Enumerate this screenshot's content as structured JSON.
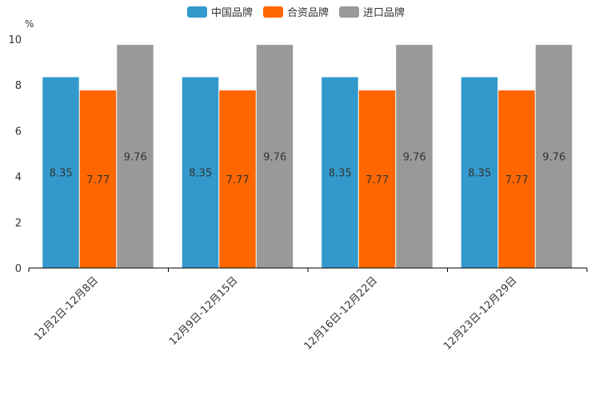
{
  "chart_data": {
    "type": "bar",
    "ylabel": "%",
    "ylim": [
      0,
      10
    ],
    "yticks": [
      0,
      2,
      4,
      6,
      8,
      10
    ],
    "categories": [
      "12月2日-12月8日",
      "12月9日-12月15日",
      "12月16日-12月22日",
      "12月23日-12月29日"
    ],
    "series": [
      {
        "name": "中国品牌",
        "color": "#3399cc",
        "values": [
          8.35,
          8.35,
          8.35,
          8.35
        ]
      },
      {
        "name": "合资品牌",
        "color": "#ff6600",
        "values": [
          7.77,
          7.77,
          7.77,
          7.77
        ]
      },
      {
        "name": "进口品牌",
        "color": "#999999",
        "values": [
          9.76,
          9.76,
          9.76,
          9.76
        ]
      }
    ],
    "legend_position": "top-center",
    "grid": false
  }
}
